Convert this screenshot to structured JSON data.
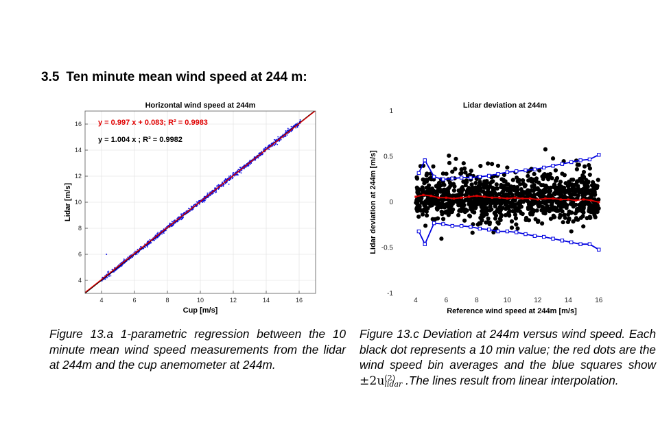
{
  "section": {
    "number": "3.5",
    "title": "Ten minute mean wind speed at 244 m:"
  },
  "chart_data": [
    {
      "type": "scatter",
      "title": "Horizontal wind speed at 244m",
      "xlabel": "Cup [m/s]",
      "ylabel": "Lidar [m/s]",
      "xlim": [
        3,
        17
      ],
      "ylim": [
        3,
        17
      ],
      "xticks": [
        4,
        6,
        8,
        10,
        12,
        14,
        16
      ],
      "yticks": [
        4,
        6,
        8,
        10,
        12,
        14,
        16
      ],
      "grid": true,
      "annotations": [
        {
          "text": "y = 0.997 x + 0.083;  R² = 0.9983",
          "color": "#e00000"
        },
        {
          "text": "y = 1.004 x ;  R² = 0.9982",
          "color": "#000000"
        }
      ],
      "series": [
        {
          "kind": "scatter",
          "color": "#1010e0",
          "x_range": [
            4.0,
            16.1
          ],
          "fit": {
            "slope": 1.004,
            "intercept": 0
          }
        },
        {
          "kind": "line",
          "color": "#000000",
          "slope": 1.004,
          "intercept": 0
        },
        {
          "kind": "line",
          "color": "#e00000",
          "slope": 0.997,
          "intercept": 0.083
        }
      ]
    },
    {
      "type": "scatter",
      "title": "Lidar deviation at 244m",
      "xlabel": "Reference wind speed at 244m [m/s]",
      "ylabel": "Lidar deviation at 244m [m/s]",
      "xlim": [
        2.7,
        17
      ],
      "ylim": [
        -1,
        1
      ],
      "xticks": [
        4,
        6,
        8,
        10,
        12,
        14,
        16
      ],
      "yticks": [
        -1,
        -0.5,
        0,
        0.5,
        1
      ],
      "grid": false,
      "series": [
        {
          "kind": "scatter",
          "color": "#000000",
          "x_range": [
            4.0,
            16.0
          ],
          "y_range": [
            -0.4,
            0.7
          ]
        },
        {
          "kind": "line-markers",
          "color": "#e00000",
          "x": [
            4.0,
            4.5,
            5.0,
            5.5,
            6.0,
            6.5,
            7.0,
            7.5,
            8.0,
            8.5,
            9.0,
            9.5,
            10.0,
            10.5,
            11.0,
            11.5,
            12.0,
            12.5,
            13.0,
            13.5,
            14.0,
            14.5,
            15.0,
            15.5,
            16.0
          ],
          "y": [
            0.06,
            0.08,
            0.07,
            0.05,
            0.05,
            0.04,
            0.05,
            0.06,
            0.07,
            0.06,
            0.05,
            0.05,
            0.04,
            0.05,
            0.04,
            0.04,
            0.03,
            0.04,
            0.04,
            0.03,
            0.03,
            0.02,
            0.03,
            0.02,
            0.0
          ]
        },
        {
          "kind": "line-squares",
          "color": "#0000e0",
          "x": [
            4.2,
            4.6,
            5.2,
            5.8,
            6.4,
            7.0,
            7.6,
            8.2,
            8.8,
            9.4,
            10.0,
            10.6,
            11.2,
            11.8,
            12.4,
            13.0,
            13.6,
            14.2,
            14.8,
            15.4,
            16.0
          ],
          "y": [
            0.32,
            0.46,
            0.28,
            0.25,
            0.26,
            0.27,
            0.27,
            0.28,
            0.29,
            0.31,
            0.33,
            0.34,
            0.35,
            0.36,
            0.38,
            0.4,
            0.42,
            0.44,
            0.46,
            0.47,
            0.52
          ]
        },
        {
          "kind": "line-squares",
          "color": "#0000e0",
          "x": [
            4.2,
            4.6,
            5.2,
            5.8,
            6.4,
            7.0,
            7.6,
            8.2,
            8.8,
            9.4,
            10.0,
            10.6,
            11.2,
            11.8,
            12.4,
            13.0,
            13.6,
            14.2,
            14.8,
            15.4,
            16.0
          ],
          "y": [
            -0.32,
            -0.46,
            -0.23,
            -0.24,
            -0.26,
            -0.26,
            -0.27,
            -0.29,
            -0.3,
            -0.32,
            -0.32,
            -0.33,
            -0.35,
            -0.37,
            -0.38,
            -0.4,
            -0.42,
            -0.44,
            -0.46,
            -0.46,
            -0.52
          ]
        }
      ]
    }
  ],
  "captions": {
    "left": "Figure 13.a 1-parametric regression between the 10 minute mean wind speed measurements from the lidar at 244m and the cup anemometer at 244m.",
    "right_part1": "Figure 13.c Deviation at 244m versus wind speed. Each black dot represents a 10 min value; the red dots are the wind speed bin averages and the blue squares show ",
    "right_math": "±2u",
    "right_math_sup": "(2)",
    "right_math_sub": "lidar",
    "right_part2": " .The lines result from linear interpolation."
  }
}
